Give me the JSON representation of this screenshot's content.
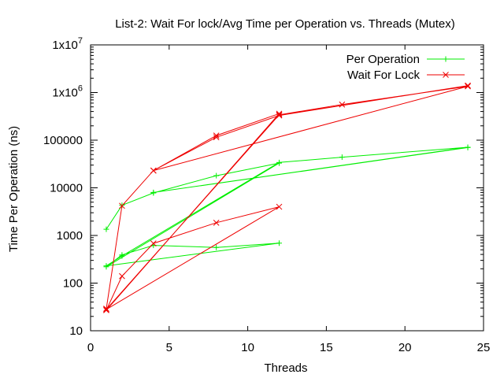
{
  "chart_data": {
    "type": "line",
    "title": "List-2: Wait For lock/Avg Time per Operation vs. Threads (Mutex)",
    "xlabel": "Threads",
    "ylabel": "Time Per Operation (ns)",
    "xlim": [
      0,
      25
    ],
    "ylim": [
      10,
      10000000
    ],
    "yscale": "log",
    "grid": false,
    "legend_position": "top-right",
    "x_ticks": [
      0,
      5,
      10,
      15,
      20,
      25
    ],
    "y_ticks": [
      {
        "value": 10,
        "label": "10"
      },
      {
        "value": 100,
        "label": "100"
      },
      {
        "value": 1000,
        "label": "1000"
      },
      {
        "value": 10000,
        "label": "10000"
      },
      {
        "value": 100000,
        "label": "100000"
      },
      {
        "value": 1000000,
        "base": "1x10",
        "exp": "6"
      },
      {
        "value": 10000000,
        "base": "1x10",
        "exp": "7"
      }
    ],
    "series": [
      {
        "name": "Per Operation",
        "color": "#00ee00",
        "marker": "plus",
        "points": [
          [
            1,
            1350
          ],
          [
            2,
            4300
          ],
          [
            4,
            7800
          ],
          [
            8,
            18000
          ],
          [
            12,
            33000
          ],
          [
            1,
            220
          ],
          [
            2,
            390
          ],
          [
            4,
            620
          ],
          [
            8,
            560
          ],
          [
            12,
            690
          ],
          [
            1,
            230
          ],
          [
            2,
            370
          ],
          [
            12,
            34000
          ],
          [
            16,
            44000
          ],
          [
            24,
            71000
          ],
          [
            4,
            8000
          ],
          [
            24,
            70000
          ]
        ]
      },
      {
        "name": "Wait For Lock",
        "color": "#ee0000",
        "marker": "cross",
        "points": [
          [
            1,
            29
          ],
          [
            2,
            4200
          ],
          [
            4,
            23000
          ],
          [
            8,
            125000
          ],
          [
            12,
            360000
          ],
          [
            1,
            27
          ],
          [
            2,
            140
          ],
          [
            4,
            680
          ],
          [
            8,
            1850
          ],
          [
            12,
            4000
          ],
          [
            1,
            28
          ],
          [
            12,
            340000
          ],
          [
            16,
            560000
          ],
          [
            24,
            1350000
          ],
          [
            4,
            23000
          ],
          [
            8,
            115000
          ],
          [
            12,
            330000
          ],
          [
            24,
            1400000
          ]
        ]
      }
    ]
  }
}
